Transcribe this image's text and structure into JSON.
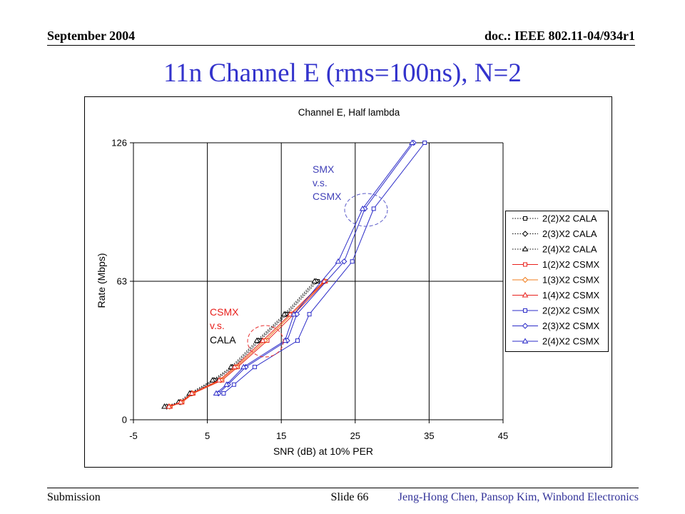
{
  "header": {
    "date": "September 2004",
    "doc": "doc.: IEEE 802.11-04/934r1"
  },
  "slide_title": "11n Channel E (rms=100ns), N=2",
  "footer": {
    "left": "Submission",
    "center": "Slide 66",
    "right": "Jeng-Hong Chen, Pansop Kim, Winbond Electronics"
  },
  "colors": {
    "title": "#3333cc",
    "footer_author": "#333399"
  },
  "chart_data": {
    "type": "line",
    "title": "Channel E, Half lambda",
    "xlabel": "SNR (dB) at 10% PER",
    "ylabel": "Rate (Mbps)",
    "xlim": [
      -5,
      45
    ],
    "ylim": [
      0,
      126
    ],
    "xticks": [
      -5,
      5,
      15,
      25,
      35,
      45
    ],
    "yticks": [
      0,
      63,
      126
    ],
    "grid": true,
    "legend_position": "right",
    "series": [
      {
        "name": "2(2)X2 CALA",
        "color": "#000000",
        "dotted": true,
        "marker": "square",
        "x": [
          -0.3,
          1.5,
          3.0,
          6.1,
          8.6,
          12.1,
          15.8,
          19.9
        ],
        "y": [
          6,
          8,
          12,
          18,
          24,
          36,
          48,
          63
        ]
      },
      {
        "name": "2(3)X2 CALA",
        "color": "#000000",
        "dotted": true,
        "marker": "diamond",
        "x": [
          -0.5,
          1.3,
          2.8,
          5.9,
          8.4,
          11.9,
          15.6,
          19.7
        ],
        "y": [
          6,
          8,
          12,
          18,
          24,
          36,
          48,
          63
        ]
      },
      {
        "name": "2(4)X2 CALA",
        "color": "#000000",
        "dotted": true,
        "marker": "triangle",
        "x": [
          -0.8,
          1.1,
          2.6,
          5.7,
          8.2,
          11.7,
          15.4,
          19.5
        ],
        "y": [
          6,
          8,
          12,
          18,
          24,
          36,
          48,
          63
        ]
      },
      {
        "name": "1(2)X2 CSMX",
        "color": "#e8201c",
        "dotted": false,
        "marker": "square",
        "x": [
          0.0,
          1.6,
          3.1,
          7.0,
          9.1,
          13.1,
          16.7,
          21.0
        ],
        "y": [
          6,
          8,
          12,
          18,
          24,
          36,
          48,
          63
        ]
      },
      {
        "name": "1(3)X2 CSMX",
        "color": "#f07c1c",
        "dotted": false,
        "marker": "diamond",
        "x": [
          -0.1,
          1.5,
          3.0,
          6.8,
          8.9,
          12.8,
          16.4,
          20.9
        ],
        "y": [
          6,
          8,
          12,
          18,
          24,
          36,
          48,
          63
        ]
      },
      {
        "name": "1(4)X2 CSMX",
        "color": "#e8201c",
        "dotted": false,
        "marker": "triangle",
        "x": [
          -0.2,
          1.4,
          2.9,
          6.6,
          8.7,
          12.5,
          16.2,
          20.8
        ],
        "y": [
          6,
          8,
          12,
          18,
          24,
          36,
          48,
          63
        ]
      },
      {
        "name": "2(2)X2 CSMX",
        "color": "#2c2cc8",
        "dotted": false,
        "marker": "square",
        "x": [
          7.2,
          8.6,
          11.4,
          17.2,
          18.8,
          24.6,
          27.5,
          34.4
        ],
        "y": [
          12,
          16,
          24,
          36,
          48,
          72,
          96,
          126
        ]
      },
      {
        "name": "2(3)X2 CSMX",
        "color": "#2c2cc8",
        "dotted": false,
        "marker": "diamond",
        "x": [
          6.5,
          7.8,
          10.2,
          15.8,
          17.1,
          23.5,
          26.3,
          32.9
        ],
        "y": [
          12,
          16,
          24,
          36,
          48,
          72,
          96,
          126
        ]
      },
      {
        "name": "2(4)X2 CSMX",
        "color": "#2c2cc8",
        "dotted": false,
        "marker": "triangle",
        "x": [
          6.2,
          7.6,
          9.9,
          15.5,
          16.7,
          22.7,
          26.0,
          32.7
        ],
        "y": [
          12,
          16,
          24,
          36,
          48,
          72,
          96,
          126
        ]
      }
    ],
    "annotations": [
      {
        "lines": [
          "SMX",
          "v.s.",
          "CSMX"
        ],
        "colors": [
          "#4040b8",
          "#4040b8",
          "#4040b8"
        ],
        "circle_color": "#5a5ac8"
      },
      {
        "lines": [
          "CSMX",
          "v.s.",
          "CALA"
        ],
        "colors": [
          "#e8201c",
          "#e8201c",
          "#000000"
        ],
        "circle_color": "#e83030"
      }
    ]
  }
}
